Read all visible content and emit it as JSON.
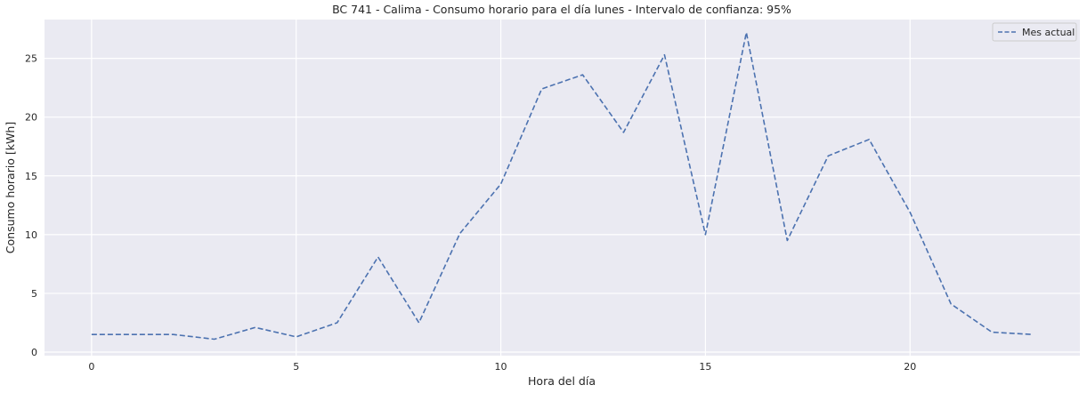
{
  "chart_data": {
    "type": "line",
    "title": "BC 741 - Calima - Consumo horario para el día lunes - Intervalo de confianza: 95%",
    "xlabel": "Hora del día",
    "ylabel": "Consumo horario [kWh]",
    "xlim": [
      -1.15,
      24.15
    ],
    "ylim": [
      -0.3,
      28.3
    ],
    "xticks": [
      0,
      5,
      10,
      15,
      20
    ],
    "yticks": [
      0,
      5,
      10,
      15,
      20,
      25
    ],
    "grid": true,
    "legend_position": "top-right",
    "series": [
      {
        "name": "Mes actual",
        "color": "#4c72b0",
        "style": "dashed",
        "x": [
          0,
          1,
          2,
          3,
          4,
          5,
          6,
          7,
          8,
          9,
          10,
          11,
          12,
          13,
          14,
          15,
          16,
          17,
          18,
          19,
          20,
          21,
          22,
          23
        ],
        "values": [
          1.5,
          1.5,
          1.5,
          1.1,
          2.1,
          1.3,
          2.5,
          8.1,
          2.5,
          10.1,
          14.3,
          22.4,
          23.6,
          18.7,
          25.3,
          10.0,
          27.2,
          9.5,
          16.7,
          18.1,
          11.9,
          4.1,
          1.7,
          1.5
        ]
      }
    ]
  }
}
